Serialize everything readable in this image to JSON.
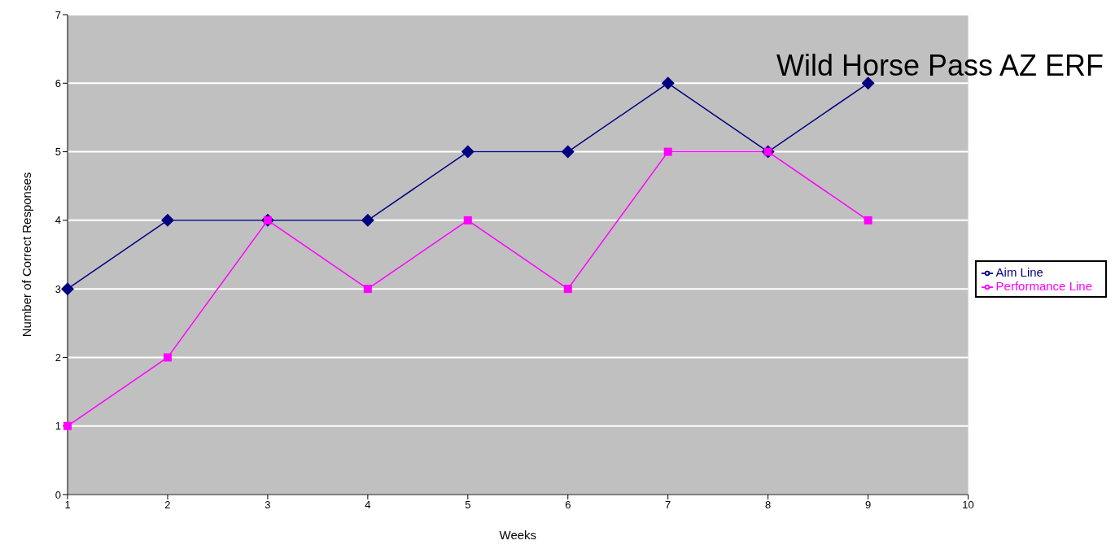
{
  "chart_data": {
    "type": "line",
    "title": "Wild Horse Pass AZ ERF",
    "xlabel": "Weeks",
    "ylabel": "Number of Correct Responses",
    "categories": [
      "1",
      "2",
      "3",
      "4",
      "5",
      "6",
      "7",
      "8",
      "9",
      "10"
    ],
    "series": [
      {
        "name": "Aim Line",
        "color": "#000080",
        "marker": "diamond",
        "values": [
          3,
          4,
          4,
          4,
          5,
          5,
          6,
          5,
          6,
          null
        ]
      },
      {
        "name": "Performance Line",
        "color": "#ff00ff",
        "marker": "square",
        "values": [
          1,
          2,
          4,
          3,
          4,
          3,
          5,
          5,
          4,
          null
        ]
      }
    ],
    "ylim": [
      0,
      7
    ],
    "yticks": [
      0,
      1,
      2,
      3,
      4,
      5,
      6,
      7
    ],
    "grid": "y",
    "legend": "right"
  }
}
